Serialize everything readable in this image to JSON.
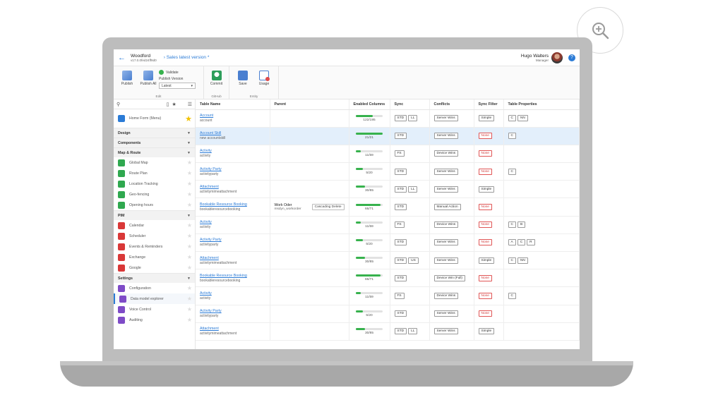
{
  "header": {
    "app_name": "Woodford",
    "app_version": "v17.0.0fed24ff9d0",
    "breadcrumb": "Sales latest version *",
    "user_name": "Hugo Walters",
    "user_role": "Manager"
  },
  "ribbon": {
    "publish": "Publish",
    "publish_all": "Publish All",
    "validate": "Validate",
    "publish_version": "Publish Version",
    "version_value": "Latest",
    "group_edit": "Edit",
    "commit": "Commit",
    "group_github": "GitHub",
    "save": "Save",
    "usage": "Usage",
    "group_entity": "Entity"
  },
  "sidebar": {
    "home": "Home Form (Menu)",
    "sections": {
      "design": "Design",
      "components": "Components",
      "map_route": "Map & Route",
      "pim": "PIM",
      "settings": "Settings"
    },
    "map_items": [
      "Global Map",
      "Route Plan",
      "Location Tracking",
      "Geo-fencing",
      "Opening hours"
    ],
    "pim_items": [
      "Calendar",
      "Scheduler",
      "Events & Reminders",
      "Exchange",
      "Google"
    ],
    "settings_items": [
      "Configuration",
      "Data model explorer",
      "Voice Control",
      "Auditing"
    ]
  },
  "table": {
    "headers": [
      "Table Name",
      "Parent",
      "Enabled Columns",
      "Sync",
      "Conflicts",
      "Sync Filter",
      "Table Properties"
    ],
    "rows": [
      {
        "name": "Account",
        "logical": "account",
        "parent": "",
        "parent_logical": "",
        "parent_action": "",
        "enabled": "122/195",
        "progress": 0.63,
        "sync": [
          "STD",
          "LL"
        ],
        "conflicts": "Server Wins",
        "filter": "Simple",
        "props": [
          "C",
          "NN"
        ]
      },
      {
        "name": "Account Skill",
        "logical": "new accountskill",
        "parent": "",
        "parent_logical": "",
        "parent_action": "",
        "enabled": "21/21",
        "progress": 1.0,
        "sync": [
          "STD"
        ],
        "conflicts": "Server Wins",
        "filter": "None",
        "props": [
          "C"
        ]
      },
      {
        "name": "Activity",
        "logical": "activity",
        "parent": "",
        "parent_logical": "",
        "parent_action": "",
        "enabled": "11/59",
        "progress": 0.19,
        "sync": [
          "FS"
        ],
        "conflicts": "Device Wins",
        "filter": "None",
        "props": []
      },
      {
        "name": "Activity Party",
        "logical": "activityparty",
        "parent": "",
        "parent_logical": "",
        "parent_action": "",
        "enabled": "5/20",
        "progress": 0.25,
        "sync": [
          "STD"
        ],
        "conflicts": "Server Wins",
        "filter": "None",
        "props": [
          "C"
        ]
      },
      {
        "name": "Attachment",
        "logical": "activitymimeattachment",
        "parent": "",
        "parent_logical": "",
        "parent_action": "",
        "enabled": "30/85",
        "progress": 0.35,
        "sync": [
          "STD",
          "LL"
        ],
        "conflicts": "Server Wins",
        "filter": "Simple",
        "props": []
      },
      {
        "name": "Bookable Resource Booking",
        "logical": "bookableresourcebooking",
        "parent": "Work Oder",
        "parent_logical": "msdyn_workorder",
        "parent_action": "Cascading Delete",
        "enabled": "66/71",
        "progress": 0.93,
        "sync": [
          "STD"
        ],
        "conflicts": "Manual Action",
        "filter": "None",
        "props": []
      },
      {
        "name": "Activity",
        "logical": "activity",
        "parent": "",
        "parent_logical": "",
        "parent_action": "",
        "enabled": "11/59",
        "progress": 0.19,
        "sync": [
          "FS"
        ],
        "conflicts": "Device Wins",
        "filter": "None",
        "props": [
          "C",
          "B"
        ]
      },
      {
        "name": "Activity Party",
        "logical": "activityparty",
        "parent": "",
        "parent_logical": "",
        "parent_action": "",
        "enabled": "5/20",
        "progress": 0.25,
        "sync": [
          "STD"
        ],
        "conflicts": "Server Wins",
        "filter": "None",
        "props": [
          "A",
          "C",
          "R"
        ]
      },
      {
        "name": "Attachment",
        "logical": "activitymimeattachment",
        "parent": "",
        "parent_logical": "",
        "parent_action": "",
        "enabled": "30/85",
        "progress": 0.35,
        "sync": [
          "STD",
          "US"
        ],
        "conflicts": "Server Wins",
        "filter": "Simple",
        "props": [
          "C",
          "NN"
        ]
      },
      {
        "name": "Bookable Resource Booking",
        "logical": "bookableresourcebooking",
        "parent": "",
        "parent_logical": "",
        "parent_action": "",
        "enabled": "66/71",
        "progress": 0.93,
        "sync": [
          "STD"
        ],
        "conflicts": "Device Win (Full)",
        "filter": "None",
        "props": []
      },
      {
        "name": "Activity",
        "logical": "activity",
        "parent": "",
        "parent_logical": "",
        "parent_action": "",
        "enabled": "11/59",
        "progress": 0.19,
        "sync": [
          "FS"
        ],
        "conflicts": "Device Wins",
        "filter": "None",
        "props": [
          "C"
        ]
      },
      {
        "name": "Activity Party",
        "logical": "activityparty",
        "parent": "",
        "parent_logical": "",
        "parent_action": "",
        "enabled": "5/20",
        "progress": 0.25,
        "sync": [
          "STD"
        ],
        "conflicts": "Server Wins",
        "filter": "None",
        "props": []
      },
      {
        "name": "Attachment",
        "logical": "activitymimeattachment",
        "parent": "",
        "parent_logical": "",
        "parent_action": "",
        "enabled": "30/85",
        "progress": 0.35,
        "sync": [
          "STD",
          "LL"
        ],
        "conflicts": "Server Wins",
        "filter": "Simple",
        "props": []
      }
    ],
    "selected_row": 1
  },
  "icons": {
    "zoom": "zoom-in-icon",
    "back": "arrow-left-icon",
    "breadcrumb_sep": "chevron-right-icon",
    "help": "help-icon",
    "search": "search-icon",
    "device": "phone-icon",
    "favorites": "star-icon",
    "menu": "list-icon"
  },
  "colors": {
    "accent": "#2b7bd6",
    "progress": "#37b24d",
    "none_badge": "#d23a3a",
    "selected_row": "#e3effb"
  }
}
